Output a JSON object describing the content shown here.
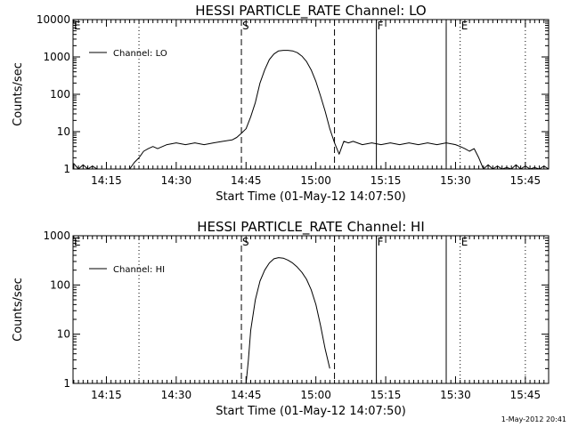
{
  "timestamp": "1-May-2012 20:41",
  "chart_data": [
    {
      "type": "line",
      "title": "HESSI PARTICLE_RATE Channel: LO",
      "xlabel": "Start Time (01-May-12 14:07:50)",
      "ylabel": "Counts/sec",
      "y_scale": "log",
      "ylim": [
        1,
        10000
      ],
      "y_ticks": [
        1,
        10,
        100,
        1000,
        10000
      ],
      "y_tick_labels": [
        "1",
        "10",
        "100",
        "1000",
        "10000"
      ],
      "xlim": [
        "14:07:50",
        "15:50:00"
      ],
      "x_tick_labels": [
        "14:15",
        "14:30",
        "14:45",
        "15:00",
        "15:15",
        "15:30",
        "15:45"
      ],
      "legend": {
        "position": "top-left",
        "entries": [
          "Channel: LO"
        ]
      },
      "markers": [
        {
          "label": "E",
          "time": "14:07:50",
          "style": "dotted"
        },
        {
          "label": "",
          "time": "14:22",
          "style": "dotted"
        },
        {
          "label": "S",
          "time": "14:44",
          "style": "dashed"
        },
        {
          "label": "",
          "time": "15:04",
          "style": "dashed"
        },
        {
          "label": "F",
          "time": "15:13",
          "style": "solid"
        },
        {
          "label": "",
          "time": "15:28",
          "style": "solid"
        },
        {
          "label": "E",
          "time": "15:31",
          "style": "dotted"
        },
        {
          "label": "",
          "time": "15:45",
          "style": "dotted"
        }
      ],
      "series": [
        {
          "name": "Channel: LO",
          "x": [
            "14:07:50",
            "14:08",
            "14:09",
            "14:10",
            "14:11",
            "14:12",
            "14:13",
            "14:14",
            "14:16",
            "14:18",
            "14:20",
            "14:21",
            "14:22",
            "14:23",
            "14:24",
            "14:25",
            "14:26",
            "14:28",
            "14:30",
            "14:32",
            "14:34",
            "14:36",
            "14:38",
            "14:40",
            "14:42",
            "14:43",
            "14:44",
            "14:45",
            "14:46",
            "14:47",
            "14:48",
            "14:49",
            "14:50",
            "14:51",
            "14:52",
            "14:53",
            "14:54",
            "14:55",
            "14:56",
            "14:57",
            "14:58",
            "14:59",
            "15:00",
            "15:01",
            "15:02",
            "15:03",
            "15:04",
            "15:05",
            "15:06",
            "15:07",
            "15:08",
            "15:10",
            "15:12",
            "15:14",
            "15:16",
            "15:18",
            "15:20",
            "15:22",
            "15:24",
            "15:26",
            "15:28",
            "15:30",
            "15:31",
            "15:32",
            "15:33",
            "15:34",
            "15:35",
            "15:36",
            "15:37",
            "15:38",
            "15:39",
            "15:40",
            "15:41",
            "15:42",
            "15:43",
            "15:44",
            "15:45",
            "15:46",
            "15:47",
            "15:48",
            "15:49",
            "15:50"
          ],
          "y": [
            1,
            1.4,
            1,
            1.3,
            1,
            1.2,
            1,
            1,
            1,
            1,
            1,
            1.5,
            2,
            3,
            3.5,
            4,
            3.5,
            4.5,
            5,
            4.5,
            5,
            4.5,
            5,
            5.5,
            6,
            7,
            9,
            12,
            25,
            60,
            200,
            450,
            850,
            1200,
            1450,
            1500,
            1500,
            1450,
            1300,
            1050,
            750,
            450,
            220,
            90,
            35,
            12,
            5,
            2.5,
            5.5,
            5,
            5.5,
            4.5,
            5,
            4.5,
            5,
            4.5,
            5,
            4.5,
            5,
            4.5,
            5,
            4.5,
            4,
            3.5,
            3,
            3.5,
            2,
            1,
            1.3,
            1,
            1.2,
            1,
            1.1,
            1,
            1.3,
            1,
            1.2,
            1,
            1.1,
            1,
            1.2,
            1
          ]
        }
      ]
    },
    {
      "type": "line",
      "title": "HESSI PARTICLE_RATE Channel: HI",
      "xlabel": "Start Time (01-May-12 14:07:50)",
      "ylabel": "Counts/sec",
      "y_scale": "log",
      "ylim": [
        1,
        1000
      ],
      "y_ticks": [
        1,
        10,
        100,
        1000
      ],
      "y_tick_labels": [
        "1",
        "10",
        "100",
        "1000"
      ],
      "xlim": [
        "14:07:50",
        "15:50:00"
      ],
      "x_tick_labels": [
        "14:15",
        "14:30",
        "14:45",
        "15:00",
        "15:15",
        "15:30",
        "15:45"
      ],
      "legend": {
        "position": "top-left",
        "entries": [
          "Channel: HI"
        ]
      },
      "markers": [
        {
          "label": "E",
          "time": "14:07:50",
          "style": "dotted"
        },
        {
          "label": "",
          "time": "14:22",
          "style": "dotted"
        },
        {
          "label": "S",
          "time": "14:44",
          "style": "dashed"
        },
        {
          "label": "",
          "time": "15:04",
          "style": "dashed"
        },
        {
          "label": "F",
          "time": "15:13",
          "style": "solid"
        },
        {
          "label": "",
          "time": "15:28",
          "style": "solid"
        },
        {
          "label": "E",
          "time": "15:31",
          "style": "dotted"
        },
        {
          "label": "",
          "time": "15:45",
          "style": "dotted"
        }
      ],
      "series": [
        {
          "name": "Channel: HI",
          "x": [
            "14:45",
            "14:45:30",
            "14:46",
            "14:47",
            "14:48",
            "14:49",
            "14:50",
            "14:51",
            "14:52",
            "14:53",
            "14:54",
            "14:55",
            "14:56",
            "14:57",
            "14:58",
            "14:59",
            "15:00",
            "15:01",
            "15:02",
            "15:03"
          ],
          "y": [
            1,
            3,
            12,
            50,
            120,
            200,
            280,
            340,
            360,
            350,
            320,
            280,
            230,
            180,
            130,
            80,
            40,
            15,
            5,
            2
          ]
        }
      ]
    }
  ]
}
